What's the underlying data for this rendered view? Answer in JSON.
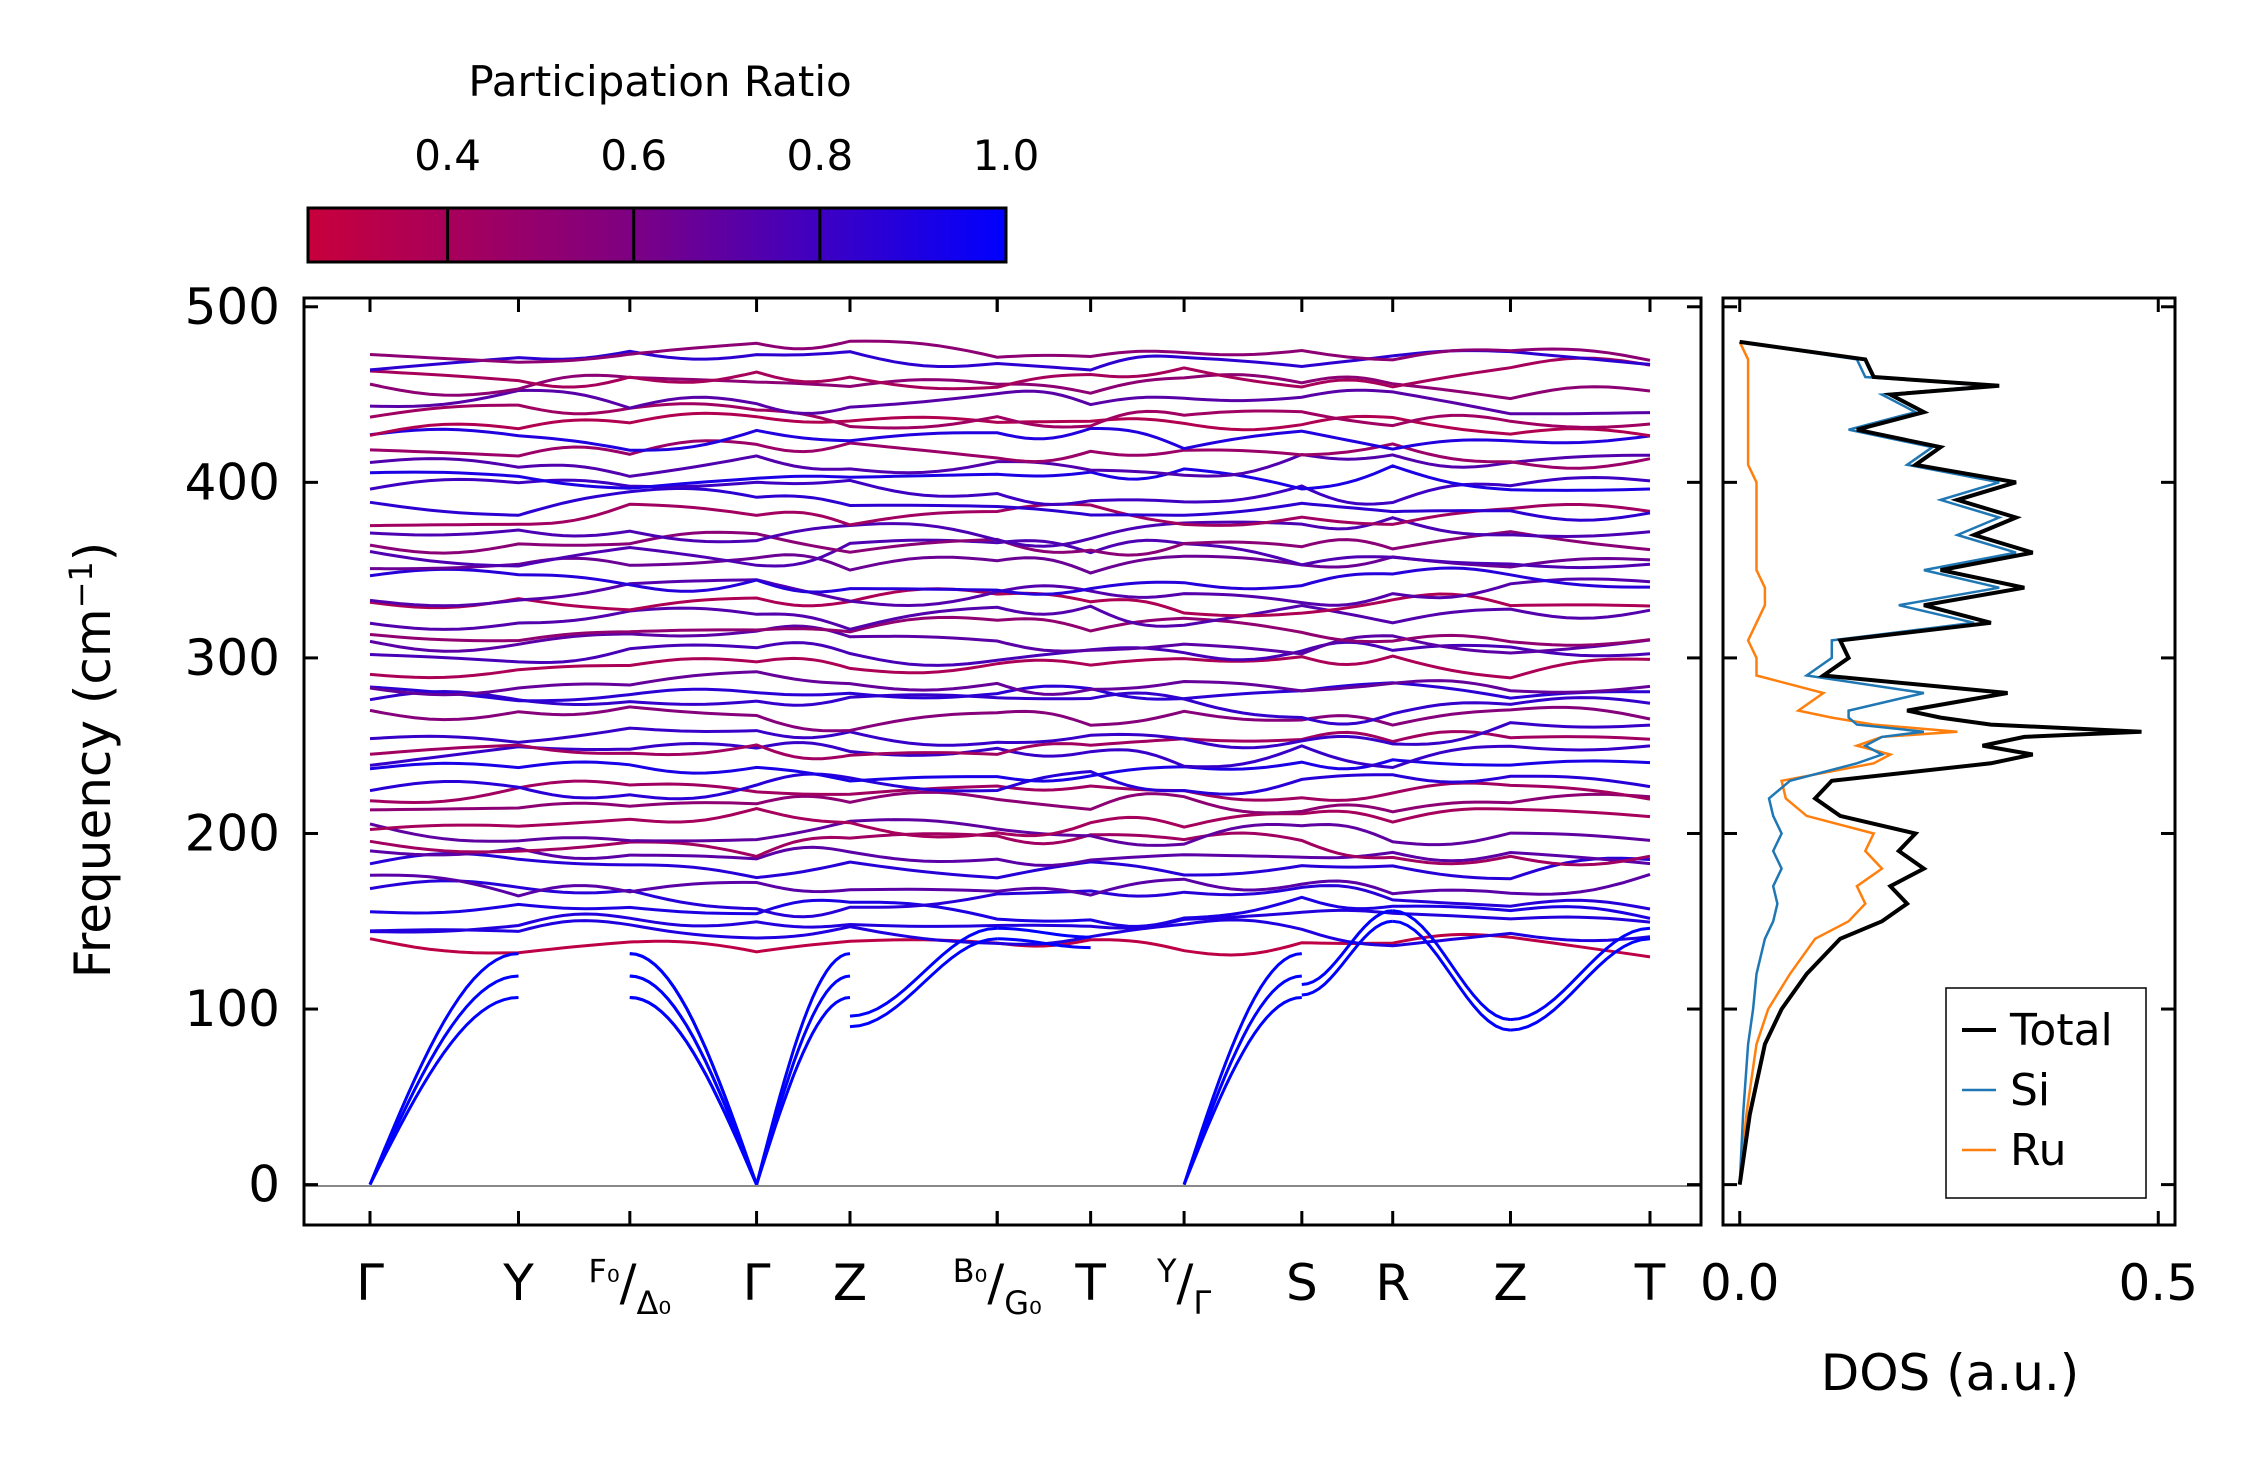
{
  "chart_data": [
    {
      "type": "line",
      "title": "",
      "ylabel_main": "Frequency (cm",
      "ylabel_sup": "−1",
      "ylabel_close": ")",
      "ylim": [
        -23,
        505
      ],
      "yticks": [
        0,
        100,
        200,
        300,
        400,
        500
      ],
      "kpoints": [
        {
          "name": "Γ",
          "pos": 0.0
        },
        {
          "name": "Y",
          "pos": 0.116
        },
        {
          "pre": "F₀",
          "slash": "/",
          "sub": "Δ₀",
          "pos": 0.203
        },
        {
          "name": "Γ",
          "pos": 0.302
        },
        {
          "name": "Z",
          "pos": 0.375
        },
        {
          "name": "",
          "pos": 0.49
        },
        {
          "pre": "B₀",
          "slash": "/",
          "sub": "G₀",
          "pos": 0.49
        },
        {
          "name": "T",
          "pos": 0.563
        },
        {
          "pre": "Y",
          "slash": "/",
          "sub": "Γ",
          "pos": 0.636
        },
        {
          "name": "S",
          "pos": 0.728
        },
        {
          "name": "R",
          "pos": 0.799
        },
        {
          "name": "Z",
          "pos": 0.891
        },
        {
          "name": "T",
          "pos": 1.0
        }
      ],
      "acoustic_endpoints_cm1": [
        130,
        135,
        140
      ],
      "optical_band_range_cm1": [
        130,
        480
      ],
      "colorbar": {
        "label": "Participation Ratio",
        "range": [
          0.25,
          1.0
        ],
        "ticks": [
          "0.4",
          "0.6",
          "0.8",
          "1.0"
        ],
        "colors": [
          "#c8003c",
          "#800080",
          "#0000ff"
        ]
      }
    },
    {
      "type": "line",
      "xlabel": "DOS (a.u.)",
      "xlim": [
        -0.02,
        0.52
      ],
      "xticks": [
        "0.0",
        "0.5"
      ],
      "series": [
        {
          "name": "Total",
          "color": "#000000",
          "y": [
            0,
            40,
            80,
            100,
            120,
            140,
            150,
            160,
            170,
            180,
            190,
            200,
            210,
            220,
            230,
            240,
            245,
            250,
            255,
            258,
            262,
            266,
            270,
            280,
            290,
            300,
            310,
            320,
            330,
            340,
            350,
            360,
            370,
            380,
            390,
            400,
            410,
            420,
            430,
            440,
            450,
            455,
            460,
            470,
            480
          ],
          "x": [
            0,
            0.012,
            0.03,
            0.05,
            0.08,
            0.12,
            0.17,
            0.2,
            0.18,
            0.22,
            0.19,
            0.21,
            0.12,
            0.09,
            0.11,
            0.3,
            0.35,
            0.29,
            0.34,
            0.48,
            0.3,
            0.24,
            0.2,
            0.32,
            0.1,
            0.13,
            0.12,
            0.3,
            0.22,
            0.34,
            0.24,
            0.35,
            0.28,
            0.33,
            0.26,
            0.33,
            0.21,
            0.24,
            0.14,
            0.22,
            0.18,
            0.31,
            0.16,
            0.15,
            0.0
          ]
        },
        {
          "name": "Si",
          "color": "#1f77b4",
          "y": [
            0,
            40,
            80,
            100,
            120,
            140,
            150,
            160,
            170,
            180,
            190,
            200,
            210,
            220,
            230,
            240,
            245,
            250,
            255,
            258,
            262,
            266,
            270,
            280,
            290,
            300,
            310,
            320,
            330,
            340,
            350,
            360,
            370,
            380,
            390,
            400,
            410,
            420,
            430,
            440,
            450,
            455,
            460,
            470,
            480
          ],
          "x": [
            0,
            0.004,
            0.01,
            0.016,
            0.02,
            0.03,
            0.04,
            0.045,
            0.04,
            0.05,
            0.04,
            0.05,
            0.04,
            0.035,
            0.06,
            0.14,
            0.17,
            0.15,
            0.17,
            0.22,
            0.14,
            0.13,
            0.13,
            0.22,
            0.08,
            0.11,
            0.11,
            0.28,
            0.19,
            0.31,
            0.22,
            0.33,
            0.26,
            0.31,
            0.24,
            0.31,
            0.2,
            0.23,
            0.13,
            0.21,
            0.17,
            0.3,
            0.15,
            0.14,
            0.0
          ]
        },
        {
          "name": "Ru",
          "color": "#ff7f0e",
          "y": [
            0,
            40,
            80,
            100,
            120,
            140,
            150,
            160,
            170,
            180,
            190,
            200,
            210,
            220,
            230,
            240,
            245,
            250,
            255,
            258,
            262,
            266,
            270,
            280,
            290,
            300,
            310,
            320,
            330,
            340,
            350,
            360,
            370,
            380,
            390,
            400,
            410,
            420,
            430,
            440,
            450,
            455,
            460,
            470,
            480
          ],
          "x": [
            0,
            0.008,
            0.02,
            0.034,
            0.06,
            0.09,
            0.13,
            0.15,
            0.14,
            0.17,
            0.15,
            0.16,
            0.08,
            0.055,
            0.05,
            0.16,
            0.18,
            0.14,
            0.17,
            0.26,
            0.16,
            0.11,
            0.07,
            0.1,
            0.02,
            0.02,
            0.01,
            0.02,
            0.03,
            0.03,
            0.02,
            0.02,
            0.02,
            0.02,
            0.02,
            0.02,
            0.01,
            0.01,
            0.01,
            0.01,
            0.01,
            0.01,
            0.01,
            0.01,
            0.0
          ]
        }
      ]
    }
  ]
}
